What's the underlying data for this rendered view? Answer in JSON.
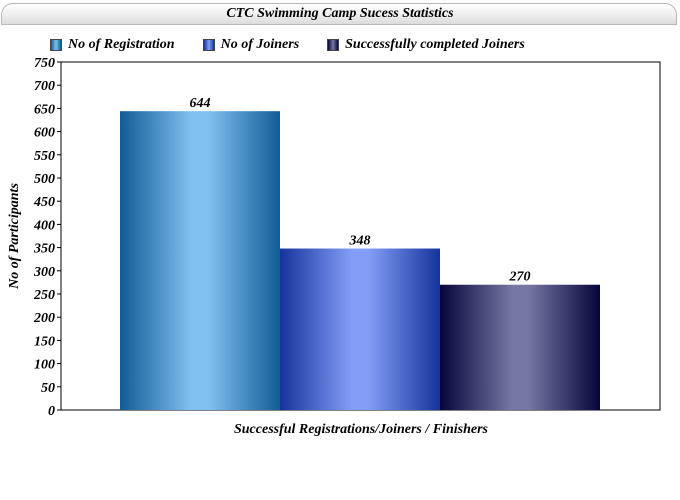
{
  "chart_data": {
    "type": "bar",
    "title": "CTC Swimming Camp Sucess Statistics",
    "xlabel": "Successful Registrations/Joiners / Finishers",
    "ylabel": "No of Participants",
    "ylim": [
      0,
      750
    ],
    "yticks": [
      0,
      50,
      100,
      150,
      200,
      250,
      300,
      350,
      400,
      450,
      500,
      550,
      600,
      650,
      700,
      750
    ],
    "legend_position": "top",
    "grid": false,
    "series": [
      {
        "name": "No of Registration",
        "value": 644,
        "color": "#1a8ee6"
      },
      {
        "name": "No of Joiners",
        "value": 348,
        "color": "#1f4ff0"
      },
      {
        "name": "Successfully completed Joiners",
        "value": 270,
        "color": "#08085a"
      }
    ]
  }
}
